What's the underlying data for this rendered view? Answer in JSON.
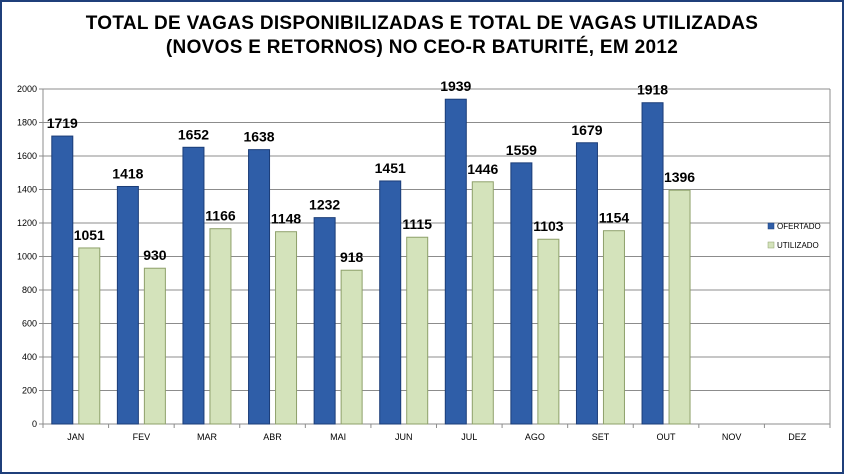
{
  "chart_data": {
    "type": "bar",
    "title_line1": "TOTAL DE VAGAS  DISPONIBILIZADAS  E TOTAL DE VAGAS  UTILIZADAS",
    "title_line2": "(NOVOS E RETORNOS) NO CEO-R BATURITÉ,  EM 2012",
    "categories": [
      "JAN",
      "FEV",
      "MAR",
      "ABR",
      "MAI",
      "JUN",
      "JUL",
      "AGO",
      "SET",
      "OUT",
      "NOV",
      "DEZ"
    ],
    "series": [
      {
        "name": "OFERTADO",
        "color": "#2f5ea8",
        "values": [
          1719,
          1418,
          1652,
          1638,
          1232,
          1451,
          1939,
          1559,
          1679,
          1918,
          null,
          null
        ]
      },
      {
        "name": "UTILIZADO",
        "color": "#d4e3bb",
        "values": [
          1051,
          930,
          1166,
          1148,
          918,
          1115,
          1446,
          1103,
          1154,
          1396,
          null,
          null
        ]
      }
    ],
    "ylim": [
      0,
      2000
    ],
    "yticks": [
      0,
      200,
      400,
      600,
      800,
      1000,
      1200,
      1400,
      1600,
      1800,
      2000
    ],
    "grid": true,
    "legend_position": "right"
  }
}
